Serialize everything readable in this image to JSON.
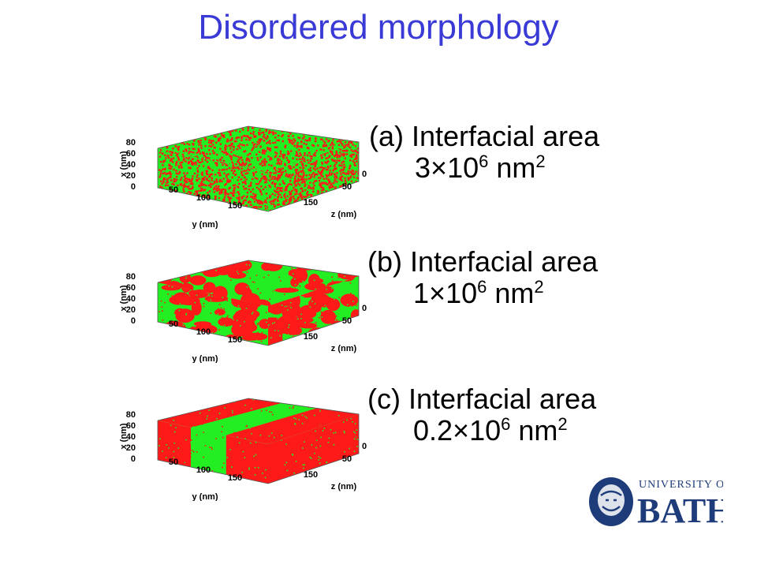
{
  "title": "Disordered morphology",
  "panels": [
    {
      "label": "(a) Interfacial area",
      "mantissa": "3",
      "times": "×",
      "base": "10",
      "exponent": "6",
      "unit": "nm",
      "unit_exponent": "2",
      "morphology": "fine-mixed",
      "axes": {
        "x_label": "x (nm)",
        "x_ticks": [
          "0",
          "20",
          "40",
          "60",
          "80"
        ],
        "y_label": "y (nm)",
        "y_ticks": [
          "50",
          "100",
          "150"
        ],
        "z_label": "z (nm)",
        "z_ticks": [
          "0",
          "50",
          "150"
        ]
      }
    },
    {
      "label": "(b) Interfacial area",
      "mantissa": "1",
      "times": "×",
      "base": "10",
      "exponent": "6",
      "unit": "nm",
      "unit_exponent": "2",
      "morphology": "coarse-domains",
      "axes": {
        "x_label": "x (nm)",
        "x_ticks": [
          "0",
          "20",
          "40",
          "60",
          "80"
        ],
        "y_label": "y (nm)",
        "y_ticks": [
          "50",
          "100",
          "150"
        ],
        "z_label": "z (nm)",
        "z_ticks": [
          "0",
          "50",
          "150"
        ]
      }
    },
    {
      "label": "(c) Interfacial area",
      "mantissa": "0.2",
      "times": "×",
      "base": "10",
      "exponent": "6",
      "unit": "nm",
      "unit_exponent": "2",
      "morphology": "bilayer-stripes",
      "axes": {
        "x_label": "x (nm)",
        "x_ticks": [
          "0",
          "20",
          "40",
          "60",
          "80"
        ],
        "y_label": "y (nm)",
        "y_ticks": [
          "50",
          "100",
          "150"
        ],
        "z_label": "z (nm)",
        "z_ticks": [
          "0",
          "50",
          "150"
        ]
      }
    }
  ],
  "colors": {
    "title": "#3a3ad6",
    "phase_a": "#ff1a1a",
    "phase_b": "#22ee22",
    "logo": "#1f3c7a"
  },
  "logo": {
    "top_text": "UNIVERSITY OF",
    "main_text": "BATH"
  }
}
